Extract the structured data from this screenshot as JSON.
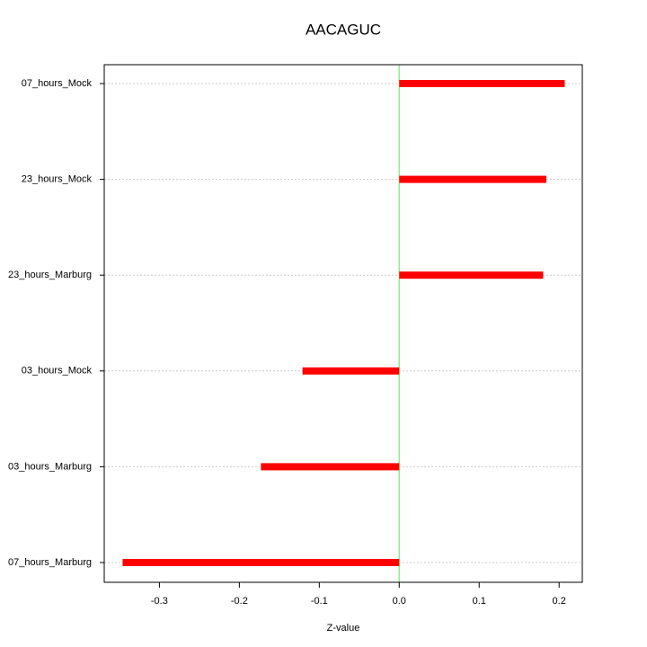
{
  "chart_data": {
    "type": "hbar",
    "title": "AACAGUC",
    "x_label": "Z-value",
    "categories": [
      "07_hours_Mock",
      "23_hours_Mock",
      "23_hours_Marburg",
      "03_hours_Mock",
      "03_hours_Marburg",
      "07_hours_Marburg"
    ],
    "values": [
      0.207,
      0.184,
      0.18,
      -0.121,
      -0.173,
      -0.346
    ],
    "color": "#ff0000",
    "xlim": [
      -0.369,
      0.229
    ],
    "xticks": [
      -0.3,
      -0.2,
      -0.1,
      {
        "value": 0,
        "label": "0.0"
      },
      0.1,
      0.2
    ],
    "reference_x": 0,
    "reference_color": "#90ee90",
    "grid": true
  }
}
